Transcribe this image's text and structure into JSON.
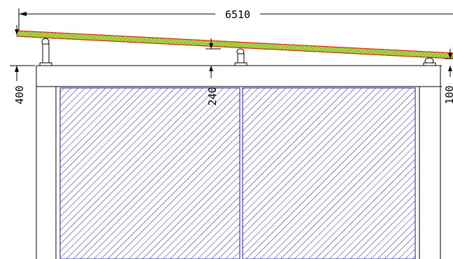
{
  "dimensions": {
    "overall_span": "6510",
    "left_height": "400",
    "middle_height": "240",
    "right_height": "100"
  },
  "colors": {
    "line": "#000000",
    "hatch": "#1a1aa6",
    "roof_outline": "#e03010",
    "roof_fill": "#8ec63f",
    "roof_core": "#f2e84a"
  }
}
